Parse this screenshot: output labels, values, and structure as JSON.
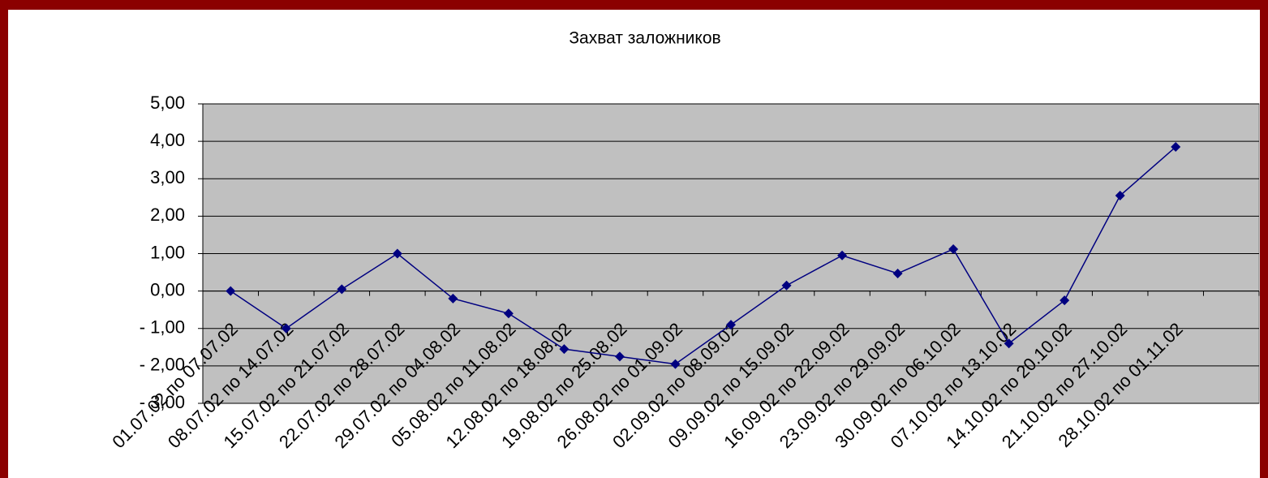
{
  "chart_data": {
    "type": "line",
    "title": "Захват заложников",
    "categories": [
      "01.07.02 по 07.07.02",
      "08.07.02 по 14.07.02",
      "15.07.02 по 21.07.02",
      "22.07.02 по 28.07.02",
      "29.07.02 по 04.08.02",
      "05.08.02 по 11.08.02",
      "12.08.02 по 18.08.02",
      "19.08.02 по 25.08.02",
      "26.08.02 по 01.09.02",
      "02.09.02 по 08.09.02",
      "09.09.02 по 15.09.02",
      "16.09.02 по 22.09.02",
      "23.09.02 по 29.09.02",
      "30.09.02 по 06.10.02",
      "07.10.02 по 13.10.02",
      "14.10.02 по 20.10.02",
      "21.10.02 по 27.10.02",
      "28.10.02 по 01.11.02",
      null
    ],
    "series": [
      {
        "name": null,
        "color": "#000080",
        "values": [
          0,
          -1.0,
          0.05,
          1.0,
          -0.2,
          -0.6,
          -1.55,
          -1.75,
          -1.95,
          -0.9,
          0.15,
          0.95,
          0.47,
          1.12,
          -1.4,
          -0.25,
          2.55,
          3.85,
          null
        ]
      }
    ],
    "ylim": [
      -3,
      5
    ],
    "yticks": [
      {
        "value": -3,
        "label": "- 3,00"
      },
      {
        "value": -2,
        "label": "- 2,00"
      },
      {
        "value": -1,
        "label": "- 1,00"
      },
      {
        "value": 0,
        "label": "0,00"
      },
      {
        "value": 1,
        "label": "1,00"
      },
      {
        "value": 2,
        "label": "2,00"
      },
      {
        "value": 3,
        "label": "3,00"
      },
      {
        "value": 4,
        "label": "4,00"
      },
      {
        "value": 5,
        "label": "5,00"
      }
    ],
    "grid": true
  }
}
